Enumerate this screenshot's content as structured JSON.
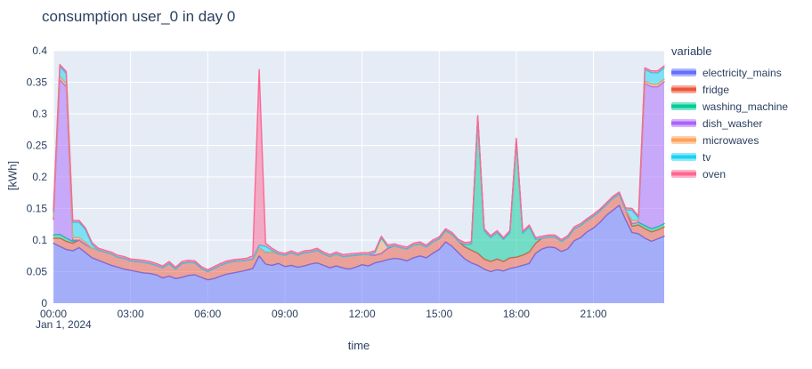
{
  "chart_data": {
    "type": "area",
    "stacked": true,
    "title": "consumption user_0 in day 0",
    "xlabel": "time",
    "ylabel": "[kWh]",
    "x_start_label": "Jan 1, 2024",
    "legend_title": "variable",
    "ylim": [
      0,
      0.4
    ],
    "plot_bgcolor": "#E5ECF6",
    "grid_color": "#FFFFFF",
    "text_color": "#2a3f5f",
    "fill_opacity": 0.5,
    "y_ticks": {
      "values": [
        0,
        0.05,
        0.1,
        0.15,
        0.2,
        0.25,
        0.3,
        0.35,
        0.4
      ],
      "labels": [
        "0",
        "0.05",
        "0.1",
        "0.15",
        "0.2",
        "0.25",
        "0.3",
        "0.35",
        "0.4"
      ]
    },
    "x_ticks": {
      "indices": [
        0,
        12,
        24,
        36,
        48,
        60,
        72,
        84
      ],
      "labels": [
        "00:00",
        "03:00",
        "06:00",
        "09:00",
        "12:00",
        "15:00",
        "18:00",
        "21:00"
      ]
    },
    "x": [
      "00:00",
      "00:15",
      "00:30",
      "00:45",
      "01:00",
      "01:15",
      "01:30",
      "01:45",
      "02:00",
      "02:15",
      "02:30",
      "02:45",
      "03:00",
      "03:15",
      "03:30",
      "03:45",
      "04:00",
      "04:15",
      "04:30",
      "04:45",
      "05:00",
      "05:15",
      "05:30",
      "05:45",
      "06:00",
      "06:15",
      "06:30",
      "06:45",
      "07:00",
      "07:15",
      "07:30",
      "07:45",
      "08:00",
      "08:15",
      "08:30",
      "08:45",
      "09:00",
      "09:15",
      "09:30",
      "09:45",
      "10:00",
      "10:15",
      "10:30",
      "10:45",
      "11:00",
      "11:15",
      "11:30",
      "11:45",
      "12:00",
      "12:15",
      "12:30",
      "12:45",
      "13:00",
      "13:15",
      "13:30",
      "13:45",
      "14:00",
      "14:15",
      "14:30",
      "14:45",
      "15:00",
      "15:15",
      "15:30",
      "15:45",
      "16:00",
      "16:15",
      "16:30",
      "16:45",
      "17:00",
      "17:15",
      "17:30",
      "17:45",
      "18:00",
      "18:15",
      "18:30",
      "18:45",
      "19:00",
      "19:15",
      "19:30",
      "19:45",
      "20:00",
      "20:15",
      "20:30",
      "20:45",
      "21:00",
      "21:15",
      "21:30",
      "21:45",
      "22:00",
      "22:15",
      "22:30",
      "22:45",
      "23:00",
      "23:15",
      "23:30",
      "23:45"
    ],
    "series": [
      {
        "name": "electricity_mains",
        "color": "#636EFA",
        "values": [
          0.095,
          0.09,
          0.085,
          0.083,
          0.088,
          0.08,
          0.072,
          0.068,
          0.064,
          0.06,
          0.057,
          0.054,
          0.052,
          0.05,
          0.048,
          0.047,
          0.045,
          0.04,
          0.043,
          0.039,
          0.041,
          0.044,
          0.045,
          0.041,
          0.037,
          0.039,
          0.043,
          0.046,
          0.048,
          0.05,
          0.052,
          0.055,
          0.075,
          0.062,
          0.06,
          0.063,
          0.058,
          0.06,
          0.057,
          0.059,
          0.062,
          0.064,
          0.06,
          0.056,
          0.059,
          0.056,
          0.054,
          0.057,
          0.061,
          0.059,
          0.064,
          0.066,
          0.069,
          0.071,
          0.07,
          0.067,
          0.072,
          0.075,
          0.072,
          0.079,
          0.085,
          0.097,
          0.09,
          0.08,
          0.07,
          0.064,
          0.06,
          0.054,
          0.05,
          0.053,
          0.051,
          0.055,
          0.057,
          0.06,
          0.063,
          0.079,
          0.086,
          0.089,
          0.088,
          0.082,
          0.086,
          0.099,
          0.104,
          0.113,
          0.119,
          0.128,
          0.139,
          0.147,
          0.155,
          0.132,
          0.112,
          0.11,
          0.103,
          0.098,
          0.102,
          0.106
        ]
      },
      {
        "name": "fridge",
        "color": "#EF553B",
        "values": [
          0.008,
          0.013,
          0.013,
          0.012,
          0.012,
          0.013,
          0.015,
          0.016,
          0.017,
          0.018,
          0.016,
          0.017,
          0.015,
          0.016,
          0.017,
          0.016,
          0.015,
          0.016,
          0.02,
          0.015,
          0.022,
          0.021,
          0.019,
          0.014,
          0.013,
          0.016,
          0.017,
          0.018,
          0.018,
          0.017,
          0.016,
          0.015,
          0.013,
          0.018,
          0.021,
          0.015,
          0.018,
          0.02,
          0.019,
          0.021,
          0.019,
          0.02,
          0.018,
          0.018,
          0.019,
          0.018,
          0.021,
          0.019,
          0.016,
          0.018,
          0.012,
          0.013,
          0.018,
          0.02,
          0.018,
          0.019,
          0.02,
          0.019,
          0.017,
          0.018,
          0.017,
          0.018,
          0.019,
          0.018,
          0.019,
          0.02,
          0.019,
          0.016,
          0.016,
          0.017,
          0.015,
          0.017,
          0.016,
          0.016,
          0.018,
          0.016,
          0.017,
          0.016,
          0.017,
          0.016,
          0.018,
          0.019,
          0.019,
          0.018,
          0.019,
          0.018,
          0.017,
          0.019,
          0.018,
          0.016,
          0.01,
          0.014,
          0.015,
          0.015,
          0.014,
          0.015
        ]
      },
      {
        "name": "washing_machine",
        "color": "#00CC96",
        "values": [
          0.005,
          0.006,
          0.005,
          0.003,
          0,
          0,
          0,
          0,
          0,
          0,
          0,
          0,
          0,
          0,
          0,
          0,
          0,
          0,
          0,
          0,
          0,
          0,
          0,
          0,
          0,
          0,
          0,
          0,
          0,
          0,
          0,
          0,
          0,
          0,
          0,
          0,
          0,
          0,
          0,
          0,
          0,
          0,
          0,
          0,
          0,
          0,
          0,
          0,
          0,
          0,
          0,
          0,
          0,
          0,
          0,
          0,
          0,
          0,
          0,
          0,
          0,
          0,
          0,
          0,
          0.004,
          0.01,
          0.215,
          0.045,
          0.038,
          0.042,
          0.035,
          0.04,
          0.185,
          0.035,
          0.04,
          0.006,
          0,
          0,
          0,
          0,
          0,
          0,
          0,
          0,
          0,
          0,
          0,
          0,
          0,
          0,
          0.004,
          0.004,
          0.005,
          0.005,
          0.005,
          0.005
        ]
      },
      {
        "name": "dish_washer",
        "color": "#AB63FA",
        "values": [
          0.025,
          0.245,
          0.24,
          0.002,
          0,
          0,
          0,
          0,
          0,
          0,
          0,
          0,
          0,
          0,
          0,
          0,
          0,
          0,
          0,
          0,
          0,
          0,
          0,
          0,
          0,
          0,
          0,
          0,
          0,
          0,
          0,
          0,
          0,
          0,
          0,
          0,
          0,
          0,
          0,
          0,
          0,
          0,
          0,
          0,
          0,
          0,
          0,
          0,
          0,
          0,
          0,
          0,
          0,
          0,
          0,
          0,
          0,
          0,
          0,
          0,
          0,
          0,
          0,
          0,
          0,
          0,
          0,
          0,
          0,
          0,
          0,
          0,
          0,
          0,
          0,
          0,
          0,
          0,
          0,
          0,
          0,
          0,
          0,
          0,
          0,
          0,
          0,
          0,
          0,
          0,
          0,
          0,
          0.225,
          0.225,
          0.222,
          0.225
        ]
      },
      {
        "name": "microwaves",
        "color": "#FFA15A",
        "values": [
          0.003,
          0.005,
          0.005,
          0.004,
          0.004,
          0.003,
          0,
          0,
          0,
          0,
          0,
          0,
          0,
          0,
          0,
          0,
          0,
          0,
          0,
          0,
          0,
          0,
          0,
          0,
          0,
          0,
          0,
          0,
          0,
          0,
          0,
          0,
          0,
          0,
          0,
          0,
          0,
          0,
          0,
          0,
          0,
          0,
          0,
          0,
          0,
          0,
          0,
          0,
          0,
          0,
          0.004,
          0.024,
          0.002,
          0,
          0,
          0,
          0,
          0,
          0,
          0,
          0,
          0,
          0,
          0,
          0,
          0,
          0,
          0,
          0,
          0,
          0,
          0,
          0,
          0,
          0,
          0,
          0,
          0,
          0,
          0,
          0,
          0,
          0,
          0,
          0,
          0,
          0,
          0,
          0,
          0,
          0.005,
          0.003,
          0.004,
          0.004,
          0.004,
          0.004
        ]
      },
      {
        "name": "tv",
        "color": "#19D3F3",
        "values": [
          0.008,
          0.016,
          0.016,
          0.024,
          0.024,
          0.02,
          0.006,
          0,
          0,
          0,
          0,
          0,
          0,
          0,
          0,
          0,
          0,
          0,
          0,
          0,
          0,
          0,
          0,
          0,
          0,
          0,
          0,
          0,
          0,
          0,
          0,
          0,
          0.004,
          0.01,
          0.003,
          0,
          0,
          0,
          0,
          0,
          0,
          0,
          0,
          0,
          0,
          0,
          0,
          0,
          0,
          0,
          0,
          0,
          0,
          0,
          0,
          0,
          0,
          0,
          0,
          0,
          0,
          0,
          0,
          0,
          0,
          0,
          0,
          0,
          0,
          0,
          0,
          0,
          0,
          0,
          0,
          0,
          0,
          0,
          0,
          0,
          0,
          0,
          0,
          0,
          0,
          0,
          0,
          0,
          0,
          0,
          0.016,
          0.004,
          0.018,
          0.018,
          0.018,
          0.018
        ]
      },
      {
        "name": "oven",
        "color": "#FF6692",
        "values": [
          0.003,
          0.003,
          0.003,
          0.003,
          0.003,
          0.003,
          0.003,
          0.003,
          0.003,
          0.003,
          0.003,
          0.003,
          0.003,
          0.003,
          0.003,
          0.003,
          0.003,
          0.003,
          0.003,
          0.003,
          0.003,
          0.003,
          0.003,
          0.003,
          0.003,
          0.003,
          0.003,
          0.003,
          0.003,
          0.003,
          0.003,
          0.005,
          0.278,
          0.005,
          0.003,
          0.003,
          0.003,
          0.003,
          0.003,
          0.003,
          0.003,
          0.003,
          0.003,
          0.003,
          0.003,
          0.003,
          0.003,
          0.003,
          0.003,
          0.003,
          0.003,
          0.003,
          0.003,
          0.003,
          0.003,
          0.003,
          0.003,
          0.003,
          0.003,
          0.003,
          0.003,
          0.003,
          0.003,
          0.003,
          0.003,
          0.003,
          0.003,
          0.003,
          0.003,
          0.003,
          0.003,
          0.003,
          0.003,
          0.003,
          0.003,
          0.003,
          0.003,
          0.003,
          0.003,
          0.003,
          0.003,
          0.003,
          0.003,
          0.003,
          0.003,
          0.003,
          0.003,
          0.003,
          0.003,
          0.003,
          0.003,
          0.003,
          0.003,
          0.003,
          0.003,
          0.003
        ]
      }
    ]
  }
}
